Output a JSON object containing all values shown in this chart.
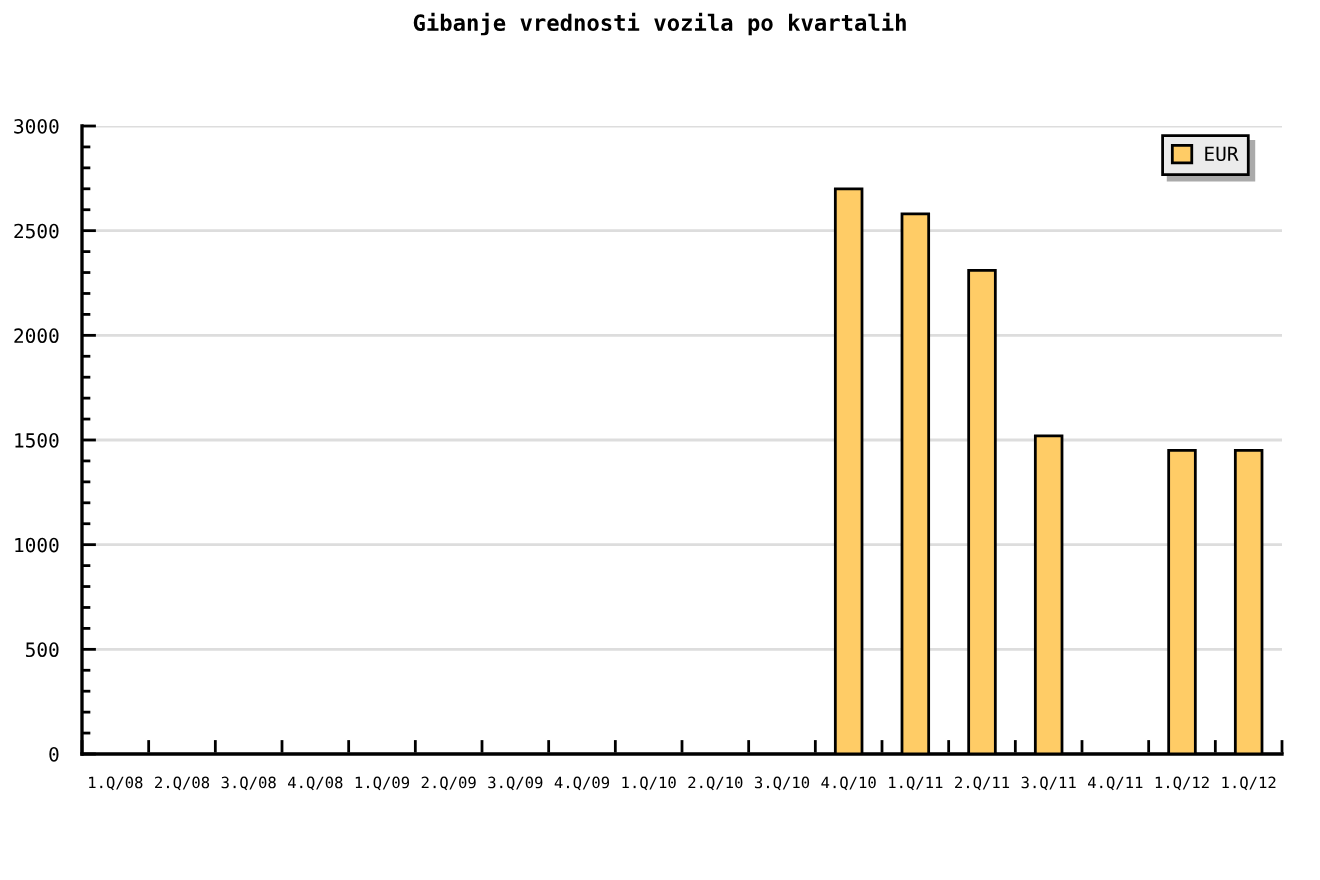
{
  "chart_data": {
    "type": "bar",
    "title": "Gibanje vrednosti vozila po kvartalih",
    "categories": [
      "1.Q/08",
      "2.Q/08",
      "3.Q/08",
      "4.Q/08",
      "1.Q/09",
      "2.Q/09",
      "3.Q/09",
      "4.Q/09",
      "1.Q/10",
      "2.Q/10",
      "3.Q/10",
      "4.Q/10",
      "1.Q/11",
      "2.Q/11",
      "3.Q/11",
      "4.Q/11",
      "1.Q/12",
      "1.Q/12"
    ],
    "series": [
      {
        "name": "EUR",
        "color": "#ffcc66",
        "values": [
          null,
          null,
          null,
          null,
          null,
          null,
          null,
          null,
          null,
          null,
          null,
          2700,
          2580,
          2310,
          1520,
          null,
          1450,
          1450
        ]
      }
    ],
    "ylim": [
      0,
      3000
    ],
    "yticks": [
      0,
      {
        "value": 100,
        "label": null
      },
      {
        "value": 200,
        "label": null
      },
      {
        "value": 300,
        "label": null
      },
      {
        "value": 400,
        "label": null
      },
      500,
      {
        "value": 600,
        "label": null
      },
      {
        "value": 700,
        "label": null
      },
      {
        "value": 800,
        "label": null
      },
      {
        "value": 900,
        "label": null
      },
      1000,
      {
        "value": 1100,
        "label": null
      },
      {
        "value": 1200,
        "label": null
      },
      {
        "value": 1300,
        "label": null
      },
      {
        "value": 1400,
        "label": null
      },
      1500,
      {
        "value": 1600,
        "label": null
      },
      {
        "value": 1700,
        "label": null
      },
      {
        "value": 1800,
        "label": null
      },
      {
        "value": 1900,
        "label": null
      },
      2000,
      {
        "value": 2100,
        "label": null
      },
      {
        "value": 2200,
        "label": null
      },
      {
        "value": 2300,
        "label": null
      },
      {
        "value": 2400,
        "label": null
      },
      2500,
      {
        "value": 2600,
        "label": null
      },
      {
        "value": 2700,
        "label": null
      },
      {
        "value": 2800,
        "label": null
      },
      {
        "value": 2900,
        "label": null
      },
      3000
    ],
    "grid": "y",
    "legend": "top right"
  }
}
